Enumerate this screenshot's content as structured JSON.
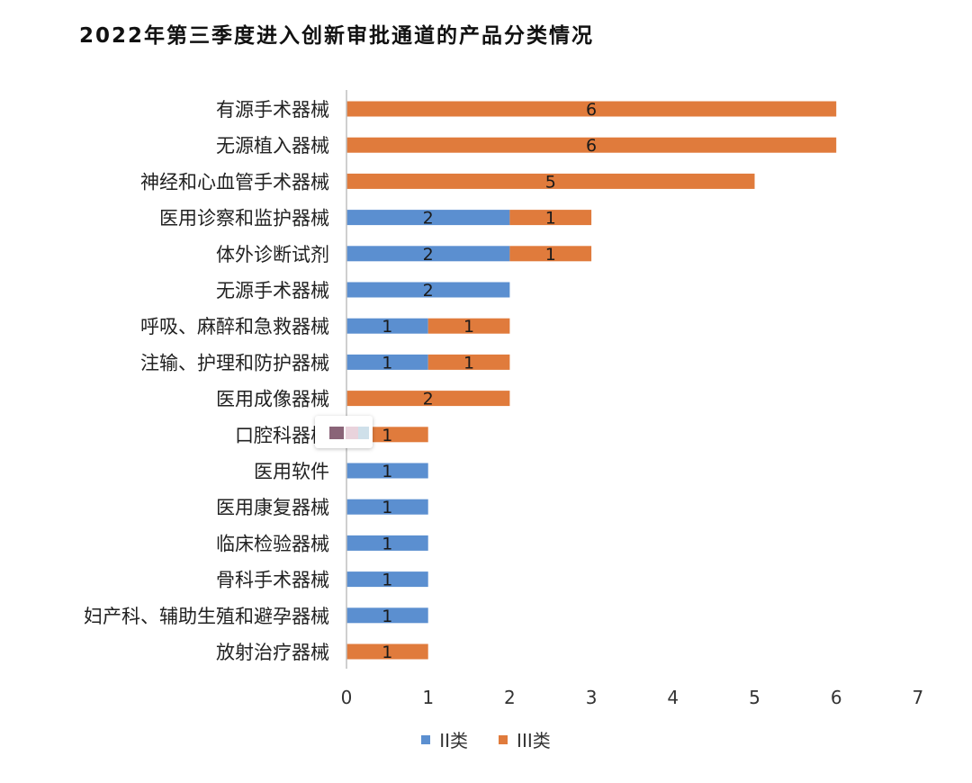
{
  "chart_data": {
    "type": "bar",
    "orientation": "horizontal",
    "stacked": true,
    "title": "2022年第三季度进入创新审批通道的产品分类情况",
    "categories": [
      "有源手术器械",
      "无源植入器械",
      "神经和心血管手术器械",
      "医用诊察和监护器械",
      "体外诊断试剂",
      "无源手术器械",
      "呼吸、麻醉和急救器械",
      "注输、护理和防护器械",
      "医用成像器械",
      "口腔科器械",
      "医用软件",
      "医用康复器械",
      "临床检验器械",
      "骨科手术器械",
      "妇产科、辅助生殖和避孕器械",
      "放射治疗器械"
    ],
    "series": [
      {
        "name": "II类",
        "color": "#5b8fd0",
        "values": [
          0,
          0,
          0,
          2,
          2,
          2,
          1,
          1,
          0,
          0,
          1,
          1,
          1,
          1,
          1,
          0
        ]
      },
      {
        "name": "III类",
        "color": "#e07b3c",
        "values": [
          6,
          6,
          5,
          1,
          1,
          0,
          1,
          1,
          2,
          1,
          0,
          0,
          0,
          0,
          0,
          1
        ]
      }
    ],
    "xlim": [
      0,
      7
    ],
    "xticks": [
      "0",
      "1",
      "2",
      "3",
      "4",
      "5",
      "6",
      "7"
    ],
    "xlabel": "",
    "ylabel": "",
    "grid": false,
    "legend_position": "bottom",
    "data_labels": true
  }
}
